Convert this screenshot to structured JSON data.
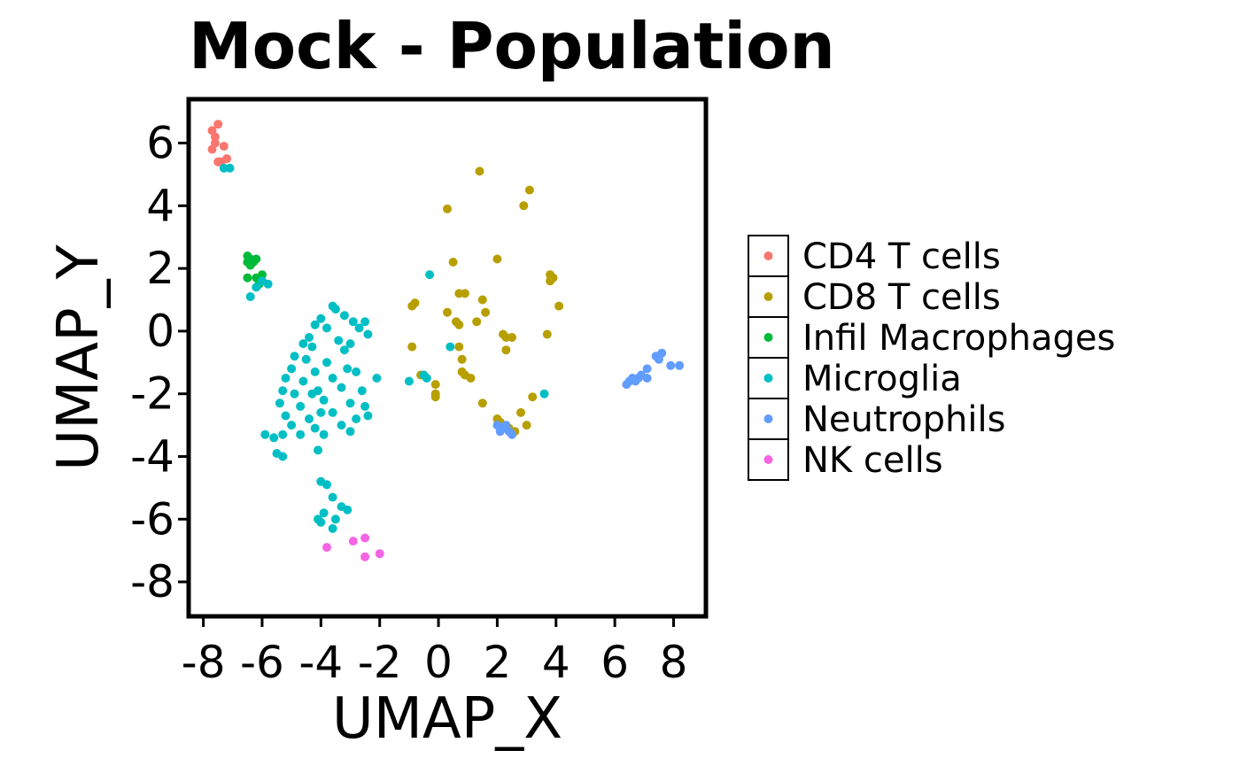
{
  "chart_data": {
    "type": "scatter",
    "title": "Mock - Population",
    "xlabel": "UMAP_X",
    "ylabel": "UMAP_Y",
    "xlim": [
      -8.5,
      9.1
    ],
    "ylim": [
      -9.1,
      7.4
    ],
    "xticks": [
      -8,
      -6,
      -4,
      -2,
      0,
      2,
      4,
      6,
      8
    ],
    "yticks": [
      -8,
      -6,
      -4,
      -2,
      0,
      2,
      4,
      6
    ],
    "grid": false,
    "legend_position": "right",
    "series": [
      {
        "name": "CD4 T cells",
        "color": "#F8766D",
        "points": [
          [
            -7.7,
            6.4
          ],
          [
            -7.5,
            6.6
          ],
          [
            -7.6,
            6.2
          ],
          [
            -7.6,
            6.0
          ],
          [
            -7.7,
            5.8
          ],
          [
            -7.5,
            5.4
          ],
          [
            -7.4,
            5.4
          ],
          [
            -7.2,
            5.5
          ],
          [
            -7.3,
            5.9
          ]
        ]
      },
      {
        "name": "CD8 T cells",
        "color": "#B79F00",
        "points": [
          [
            1.4,
            5.1
          ],
          [
            3.1,
            4.5
          ],
          [
            0.3,
            3.9
          ],
          [
            2.9,
            4.0
          ],
          [
            0.5,
            2.2
          ],
          [
            2.0,
            2.3
          ],
          [
            3.8,
            1.8
          ],
          [
            3.8,
            1.6
          ],
          [
            3.9,
            1.7
          ],
          [
            0.7,
            1.2
          ],
          [
            0.9,
            1.2
          ],
          [
            1.5,
            1.0
          ],
          [
            1.6,
            0.6
          ],
          [
            4.1,
            0.8
          ],
          [
            -0.8,
            0.9
          ],
          [
            -0.9,
            0.8
          ],
          [
            0.3,
            0.6
          ],
          [
            0.6,
            0.3
          ],
          [
            0.7,
            0.2
          ],
          [
            1.3,
            0.3
          ],
          [
            2.3,
            -0.2
          ],
          [
            2.5,
            -0.2
          ],
          [
            2.2,
            -0.1
          ],
          [
            3.7,
            -0.1
          ],
          [
            -0.9,
            -0.5
          ],
          [
            0.7,
            -0.5
          ],
          [
            2.3,
            -0.6
          ],
          [
            0.8,
            -0.9
          ],
          [
            0.8,
            -1.3
          ],
          [
            0.9,
            -1.4
          ],
          [
            -0.6,
            -1.4
          ],
          [
            1.1,
            -1.5
          ],
          [
            -0.1,
            -1.7
          ],
          [
            -0.1,
            -2.0
          ],
          [
            -0.1,
            -2.1
          ],
          [
            3.2,
            -2.1
          ],
          [
            1.5,
            -2.3
          ],
          [
            2.0,
            -2.8
          ],
          [
            2.1,
            -2.9
          ],
          [
            2.8,
            -2.6
          ],
          [
            3.0,
            -3.0
          ],
          [
            2.4,
            -3.1
          ],
          [
            2.6,
            -3.2
          ]
        ]
      },
      {
        "name": "Infil Macrophages",
        "color": "#00BA38",
        "points": [
          [
            -6.5,
            2.4
          ],
          [
            -6.4,
            2.3
          ],
          [
            -6.5,
            2.2
          ],
          [
            -6.3,
            2.2
          ],
          [
            -6.4,
            2.1
          ],
          [
            -6.2,
            2.3
          ],
          [
            -6.0,
            1.8
          ],
          [
            -6.2,
            1.7
          ],
          [
            -6.5,
            1.7
          ],
          [
            -6.1,
            1.5
          ]
        ]
      },
      {
        "name": "Microglia",
        "color": "#00BFC4",
        "points": [
          [
            -7.3,
            5.2
          ],
          [
            -7.1,
            5.2
          ],
          [
            -6.0,
            1.6
          ],
          [
            -5.8,
            1.5
          ],
          [
            -6.2,
            1.4
          ],
          [
            -6.4,
            1.1
          ],
          [
            -3.6,
            0.8
          ],
          [
            -3.5,
            0.7
          ],
          [
            -3.2,
            0.5
          ],
          [
            -2.9,
            0.3
          ],
          [
            -2.5,
            0.3
          ],
          [
            -2.7,
            0.1
          ],
          [
            -2.4,
            -0.1
          ],
          [
            -4.0,
            0.4
          ],
          [
            -4.2,
            0.2
          ],
          [
            -3.8,
            0.1
          ],
          [
            -4.4,
            -0.2
          ],
          [
            -4.6,
            -0.4
          ],
          [
            -4.3,
            -0.5
          ],
          [
            -4.9,
            -0.8
          ],
          [
            -4.5,
            -0.9
          ],
          [
            -3.2,
            -0.6
          ],
          [
            -3.0,
            -0.4
          ],
          [
            -3.4,
            -0.3
          ],
          [
            -5.0,
            -1.2
          ],
          [
            -4.2,
            -1.3
          ],
          [
            -3.1,
            -1.2
          ],
          [
            -5.2,
            -1.5
          ],
          [
            -4.6,
            -1.6
          ],
          [
            -3.6,
            -1.5
          ],
          [
            -2.8,
            -1.3
          ],
          [
            -5.3,
            -1.9
          ],
          [
            -4.9,
            -2.0
          ],
          [
            -4.1,
            -1.9
          ],
          [
            -3.3,
            -1.8
          ],
          [
            -2.6,
            -1.9
          ],
          [
            -5.4,
            -2.3
          ],
          [
            -4.7,
            -2.4
          ],
          [
            -3.9,
            -2.2
          ],
          [
            -3.0,
            -2.3
          ],
          [
            -2.5,
            -2.4
          ],
          [
            -5.2,
            -2.7
          ],
          [
            -4.4,
            -2.8
          ],
          [
            -3.6,
            -2.6
          ],
          [
            -2.8,
            -2.8
          ],
          [
            -5.0,
            -3.0
          ],
          [
            -4.2,
            -3.1
          ],
          [
            -3.3,
            -3.0
          ],
          [
            -2.4,
            -2.7
          ],
          [
            -2.1,
            -1.5
          ],
          [
            -5.9,
            -3.3
          ],
          [
            -5.6,
            -3.4
          ],
          [
            -5.3,
            -3.3
          ],
          [
            -4.7,
            -3.3
          ],
          [
            -3.9,
            -3.3
          ],
          [
            -3.0,
            -3.2
          ],
          [
            -5.5,
            -3.9
          ],
          [
            -5.3,
            -4.0
          ],
          [
            -4.1,
            -3.8
          ],
          [
            -4.0,
            -4.8
          ],
          [
            -3.8,
            -4.9
          ],
          [
            -3.6,
            -5.3
          ],
          [
            -3.3,
            -5.6
          ],
          [
            -3.1,
            -5.7
          ],
          [
            -3.5,
            -6.0
          ],
          [
            -3.9,
            -5.8
          ],
          [
            -4.0,
            -6.1
          ],
          [
            -4.1,
            -6.0
          ],
          [
            -3.6,
            -6.3
          ],
          [
            -0.3,
            1.8
          ],
          [
            -0.4,
            -1.5
          ],
          [
            -1.0,
            -1.6
          ],
          [
            0.4,
            -0.5
          ],
          [
            -0.5,
            -1.4
          ],
          [
            3.6,
            -2.0
          ],
          [
            -4.0,
            -2.6
          ],
          [
            -3.8,
            -1.0
          ],
          [
            -4.3,
            -2.0
          ]
        ]
      },
      {
        "name": "Neutrophils",
        "color": "#619CFF",
        "points": [
          [
            6.4,
            -1.7
          ],
          [
            6.5,
            -1.6
          ],
          [
            6.7,
            -1.6
          ],
          [
            6.8,
            -1.5
          ],
          [
            6.6,
            -1.5
          ],
          [
            6.9,
            -1.4
          ],
          [
            7.1,
            -1.5
          ],
          [
            7.1,
            -1.2
          ],
          [
            7.4,
            -0.8
          ],
          [
            7.6,
            -0.7
          ],
          [
            7.5,
            -0.9
          ],
          [
            7.9,
            -1.1
          ],
          [
            8.2,
            -1.1
          ],
          [
            2.0,
            -3.0
          ],
          [
            2.2,
            -3.1
          ],
          [
            2.4,
            -3.2
          ],
          [
            2.5,
            -3.3
          ],
          [
            2.3,
            -3.0
          ],
          [
            2.1,
            -3.2
          ]
        ]
      },
      {
        "name": "NK cells",
        "color": "#F564E3",
        "points": [
          [
            -3.8,
            -6.9
          ],
          [
            -2.9,
            -6.7
          ],
          [
            -2.5,
            -6.6
          ],
          [
            -2.5,
            -7.2
          ],
          [
            -2.0,
            -7.1
          ]
        ]
      }
    ]
  }
}
